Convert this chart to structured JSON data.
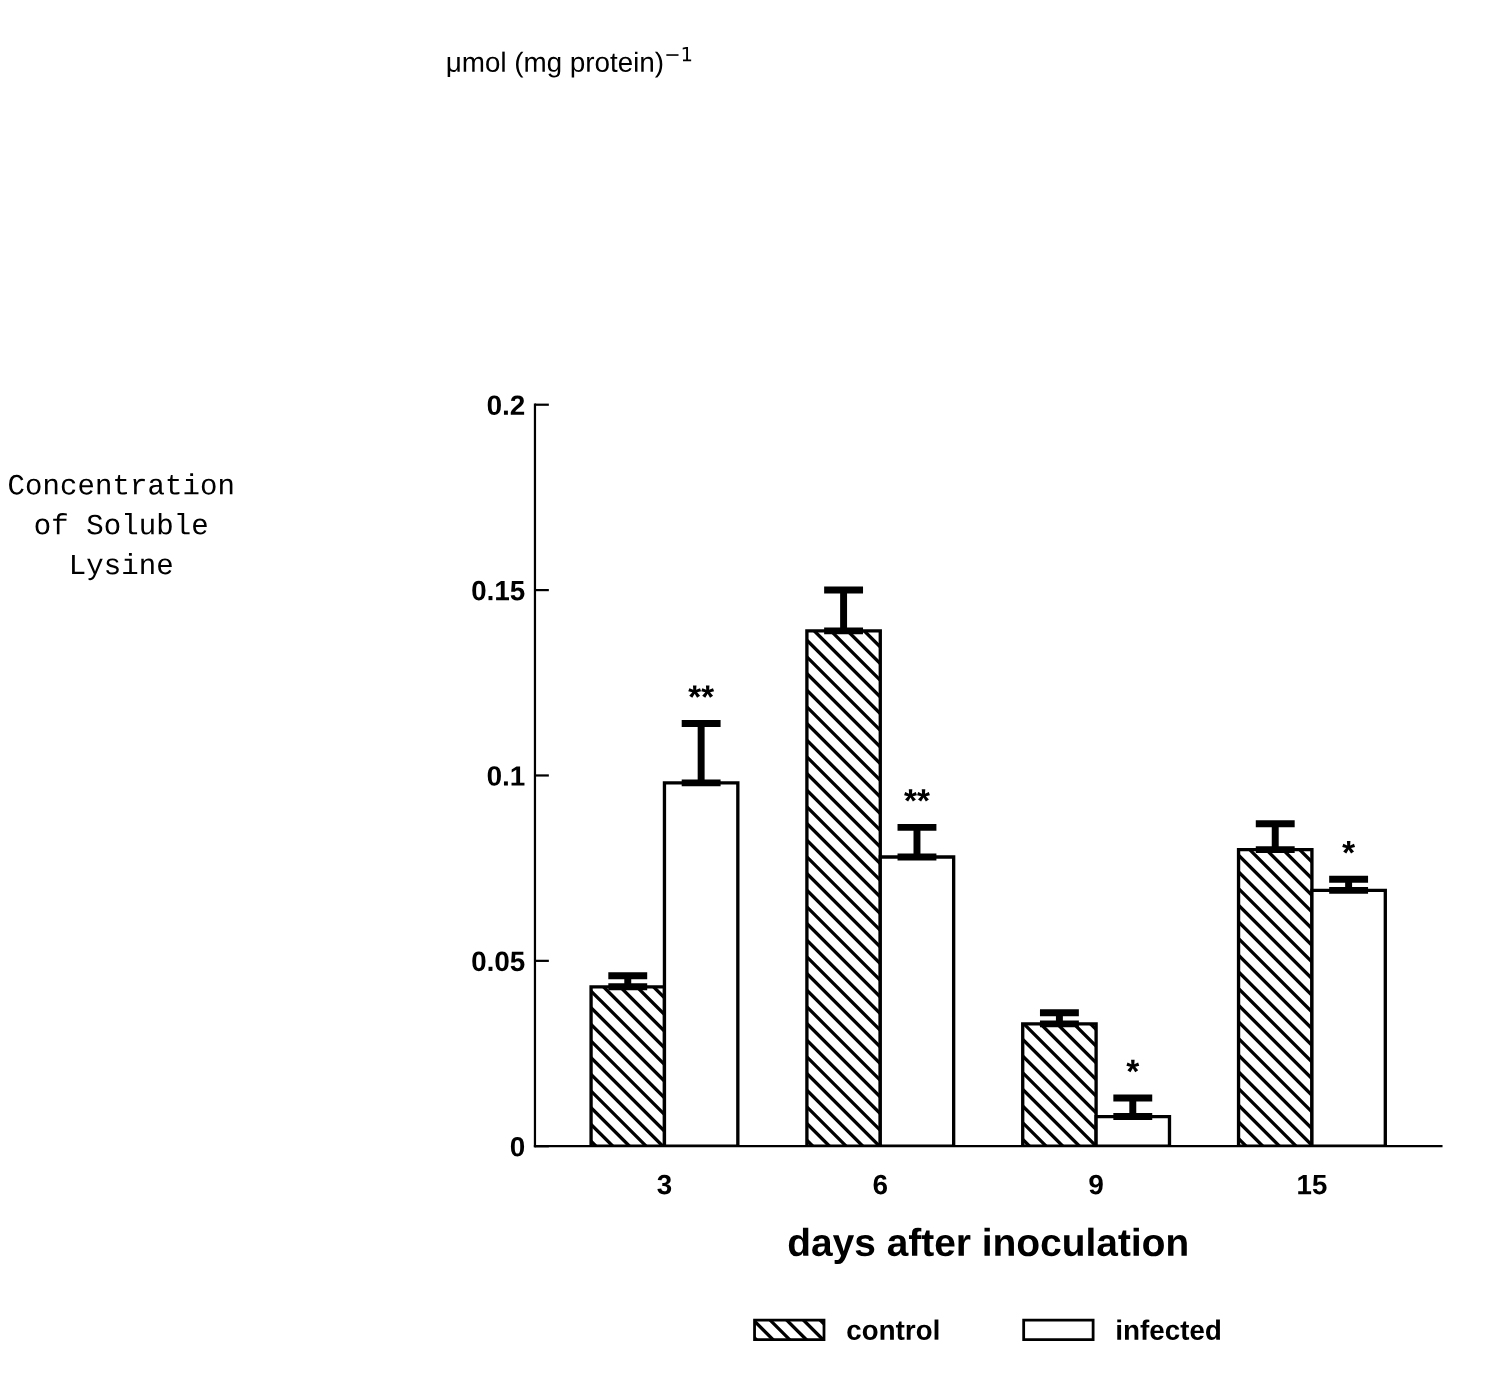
{
  "chart_data": {
    "type": "bar",
    "xlabel": "days after inoculation",
    "categories": [
      "3",
      "6",
      "9",
      "15"
    ],
    "series": [
      {
        "name": "control",
        "color": "#000000",
        "values": [
          0.043,
          0.139,
          0.033,
          0.08
        ],
        "errors": [
          0.003,
          0.011,
          0.003,
          0.007
        ]
      },
      {
        "name": "infected",
        "color": "#ffffff",
        "values": [
          0.098,
          0.078,
          0.008,
          0.069
        ],
        "errors": [
          0.016,
          0.008,
          0.005,
          0.003
        ],
        "value_labels": [
          "**",
          "**",
          "*",
          "*"
        ]
      }
    ],
    "ylim": [
      0,
      0.2
    ],
    "yticks": [
      0,
      0.05,
      0.1,
      0.15,
      0.2
    ],
    "annotations": [
      "μmol (mg protein)$^{−1}$",
      "Concentration\nof Soluble\nLysine"
    ],
    "legend": "bottom",
    "grid": false
  }
}
